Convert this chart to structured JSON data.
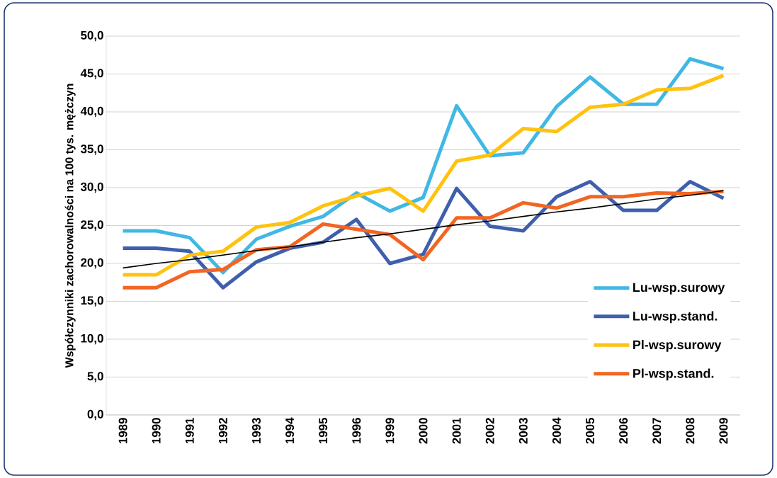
{
  "chart_data": {
    "type": "line",
    "ylabel": "Współczynniki zachorowalności na 100 tys. mężczyn",
    "categories": [
      "1989",
      "1990",
      "1991",
      "1992",
      "1993",
      "1994",
      "1995",
      "1996",
      "1999",
      "2000",
      "2001",
      "2002",
      "2003",
      "2004",
      "2005",
      "2006",
      "2007",
      "2008",
      "2009"
    ],
    "series": [
      {
        "name": "Lu-wsp.surowy",
        "color": "#41b8e4",
        "values": [
          24.3,
          24.3,
          23.4,
          18.8,
          23.2,
          24.9,
          26.2,
          29.3,
          26.9,
          28.7,
          40.8,
          34.2,
          34.6,
          40.7,
          44.6,
          41.0,
          41.0,
          47.0,
          45.7
        ]
      },
      {
        "name": "Lu-wsp.stand.",
        "color": "#3f5fad",
        "values": [
          22.0,
          22.0,
          21.6,
          16.8,
          20.2,
          22.0,
          22.8,
          25.8,
          20.0,
          21.2,
          29.9,
          24.9,
          24.3,
          28.8,
          30.8,
          27.0,
          27.0,
          30.8,
          28.6
        ]
      },
      {
        "name": "Pl-wsp.surowy",
        "color": "#ffc20e",
        "values": [
          18.5,
          18.5,
          21.1,
          21.6,
          24.8,
          25.4,
          27.6,
          28.9,
          29.9,
          26.9,
          33.5,
          34.3,
          37.8,
          37.4,
          40.6,
          41.0,
          42.9,
          43.1,
          44.8
        ]
      },
      {
        "name": "Pl-wsp.stand.",
        "color": "#f26522",
        "values": [
          16.8,
          16.8,
          18.9,
          19.2,
          21.8,
          22.2,
          25.2,
          24.5,
          23.8,
          20.5,
          26.0,
          26.0,
          28.0,
          27.3,
          28.8,
          28.8,
          29.3,
          29.2,
          29.5
        ]
      },
      {
        "type": "line",
        "color": "#000000",
        "values": [
          19.4,
          20.0,
          20.5,
          21.1,
          21.7,
          22.2,
          22.8,
          23.4,
          23.9,
          24.5,
          25.1,
          25.6,
          26.2,
          26.8,
          27.3,
          27.9,
          28.5,
          29.0,
          29.6
        ]
      }
    ],
    "ylim": [
      0,
      50
    ],
    "yticks": [
      {
        "value": 0,
        "label": "0,0"
      },
      {
        "value": 5,
        "label": "5,0"
      },
      {
        "value": 10,
        "label": "10,0"
      },
      {
        "value": 15,
        "label": "15,0"
      },
      {
        "value": 20,
        "label": "20,0"
      },
      {
        "value": 25,
        "label": "25,0"
      },
      {
        "value": 30,
        "label": "30,0"
      },
      {
        "value": 35,
        "label": "35,0"
      },
      {
        "value": 40,
        "label": "40,0"
      },
      {
        "value": 45,
        "label": "45,0"
      },
      {
        "value": 50,
        "label": "50,0"
      }
    ],
    "grid": "y",
    "legend": "right",
    "marker": "none",
    "line_style": "solid"
  }
}
